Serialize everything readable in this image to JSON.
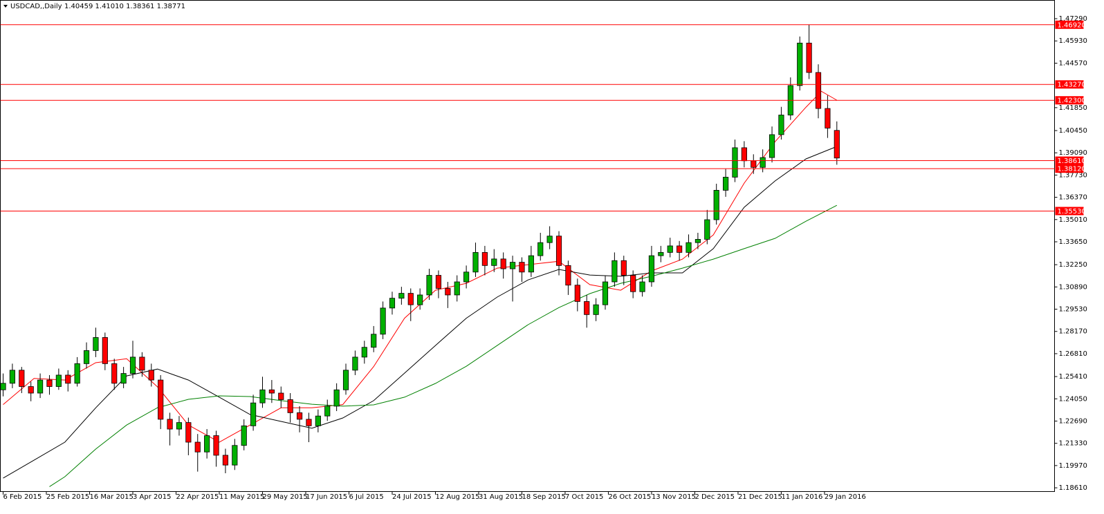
{
  "chart_data": {
    "type": "candlestick",
    "title": "USDCAD,,Daily",
    "subtitle": "1.40459 1.41010 1.38361 1.38771",
    "up_color": "#00b000",
    "down_color": "#ff0000",
    "wick_color": "#000000",
    "xlim": [
      -0.9,
      340.5
    ],
    "ylim": [
      1.1836,
      1.4839
    ],
    "x": [
      0,
      3,
      6,
      9,
      12,
      15,
      18,
      21,
      24,
      27,
      30,
      33,
      36,
      39,
      42,
      45,
      48,
      51,
      54,
      57,
      60,
      63,
      66,
      69,
      72,
      75,
      78,
      81,
      84,
      87,
      90,
      93,
      96,
      99,
      102,
      105,
      108,
      111,
      114,
      117,
      120,
      123,
      126,
      129,
      132,
      135,
      138,
      141,
      144,
      147,
      150,
      153,
      156,
      159,
      162,
      165,
      168,
      171,
      174,
      177,
      180,
      183,
      186,
      189,
      192,
      195,
      198,
      201,
      204,
      207,
      210,
      213,
      216,
      219,
      222,
      225,
      228,
      231,
      234,
      237,
      240,
      243,
      246,
      249,
      252,
      255,
      258,
      261,
      264,
      267,
      270
    ],
    "ohlc": [
      [
        1.246,
        1.256,
        1.242,
        1.25
      ],
      [
        1.25,
        1.262,
        1.247,
        1.258
      ],
      [
        1.258,
        1.26,
        1.244,
        1.248
      ],
      [
        1.248,
        1.251,
        1.239,
        1.244
      ],
      [
        1.244,
        1.256,
        1.241,
        1.252
      ],
      [
        1.252,
        1.255,
        1.243,
        1.248
      ],
      [
        1.248,
        1.259,
        1.246,
        1.255
      ],
      [
        1.255,
        1.258,
        1.245,
        1.25
      ],
      [
        1.25,
        1.266,
        1.248,
        1.262
      ],
      [
        1.262,
        1.275,
        1.259,
        1.27
      ],
      [
        1.27,
        1.284,
        1.266,
        1.278
      ],
      [
        1.278,
        1.281,
        1.258,
        1.262
      ],
      [
        1.262,
        1.265,
        1.246,
        1.25
      ],
      [
        1.25,
        1.26,
        1.247,
        1.256
      ],
      [
        1.256,
        1.276,
        1.253,
        1.266
      ],
      [
        1.266,
        1.269,
        1.254,
        1.258
      ],
      [
        1.258,
        1.262,
        1.248,
        1.252
      ],
      [
        1.252,
        1.255,
        1.222,
        1.228
      ],
      [
        1.228,
        1.232,
        1.212,
        1.222
      ],
      [
        1.222,
        1.23,
        1.218,
        1.226
      ],
      [
        1.226,
        1.229,
        1.206,
        1.214
      ],
      [
        1.214,
        1.219,
        1.196,
        1.208
      ],
      [
        1.208,
        1.222,
        1.204,
        1.218
      ],
      [
        1.218,
        1.221,
        1.199,
        1.206
      ],
      [
        1.206,
        1.21,
        1.195,
        1.2
      ],
      [
        1.2,
        1.216,
        1.197,
        1.212
      ],
      [
        1.212,
        1.228,
        1.209,
        1.224
      ],
      [
        1.224,
        1.243,
        1.221,
        1.238
      ],
      [
        1.238,
        1.254,
        1.235,
        1.246
      ],
      [
        1.246,
        1.252,
        1.238,
        1.244
      ],
      [
        1.244,
        1.248,
        1.235,
        1.24
      ],
      [
        1.24,
        1.244,
        1.226,
        1.232
      ],
      [
        1.232,
        1.236,
        1.22,
        1.228
      ],
      [
        1.228,
        1.232,
        1.214,
        1.224
      ],
      [
        1.224,
        1.234,
        1.22,
        1.23
      ],
      [
        1.23,
        1.24,
        1.227,
        1.236
      ],
      [
        1.236,
        1.25,
        1.233,
        1.246
      ],
      [
        1.246,
        1.262,
        1.243,
        1.258
      ],
      [
        1.258,
        1.27,
        1.255,
        1.266
      ],
      [
        1.266,
        1.276,
        1.262,
        1.272
      ],
      [
        1.272,
        1.285,
        1.269,
        1.28
      ],
      [
        1.28,
        1.3,
        1.277,
        1.296
      ],
      [
        1.296,
        1.306,
        1.292,
        1.302
      ],
      [
        1.302,
        1.309,
        1.298,
        1.305
      ],
      [
        1.305,
        1.308,
        1.288,
        1.298
      ],
      [
        1.298,
        1.308,
        1.295,
        1.304
      ],
      [
        1.304,
        1.32,
        1.301,
        1.316
      ],
      [
        1.316,
        1.319,
        1.302,
        1.308
      ],
      [
        1.308,
        1.312,
        1.296,
        1.304
      ],
      [
        1.304,
        1.316,
        1.3,
        1.312
      ],
      [
        1.312,
        1.322,
        1.308,
        1.318
      ],
      [
        1.318,
        1.336,
        1.315,
        1.33
      ],
      [
        1.33,
        1.334,
        1.316,
        1.322
      ],
      [
        1.322,
        1.332,
        1.318,
        1.326
      ],
      [
        1.326,
        1.33,
        1.314,
        1.32
      ],
      [
        1.32,
        1.328,
        1.3,
        1.324
      ],
      [
        1.324,
        1.327,
        1.312,
        1.318
      ],
      [
        1.318,
        1.334,
        1.315,
        1.328
      ],
      [
        1.328,
        1.342,
        1.325,
        1.336
      ],
      [
        1.336,
        1.346,
        1.332,
        1.34
      ],
      [
        1.34,
        1.343,
        1.316,
        1.322
      ],
      [
        1.322,
        1.325,
        1.304,
        1.31
      ],
      [
        1.31,
        1.314,
        1.294,
        1.3
      ],
      [
        1.3,
        1.304,
        1.284,
        1.292
      ],
      [
        1.292,
        1.302,
        1.288,
        1.298
      ],
      [
        1.298,
        1.316,
        1.295,
        1.312
      ],
      [
        1.312,
        1.33,
        1.309,
        1.325
      ],
      [
        1.325,
        1.328,
        1.31,
        1.316
      ],
      [
        1.316,
        1.319,
        1.302,
        1.306
      ],
      [
        1.306,
        1.316,
        1.303,
        1.312
      ],
      [
        1.312,
        1.334,
        1.309,
        1.328
      ],
      [
        1.328,
        1.334,
        1.324,
        1.33
      ],
      [
        1.33,
        1.339,
        1.327,
        1.334
      ],
      [
        1.334,
        1.337,
        1.325,
        1.33
      ],
      [
        1.33,
        1.341,
        1.327,
        1.336
      ],
      [
        1.336,
        1.342,
        1.332,
        1.338
      ],
      [
        1.338,
        1.356,
        1.335,
        1.35
      ],
      [
        1.35,
        1.372,
        1.347,
        1.368
      ],
      [
        1.368,
        1.381,
        1.364,
        1.376
      ],
      [
        1.376,
        1.399,
        1.373,
        1.394
      ],
      [
        1.394,
        1.398,
        1.382,
        1.386
      ],
      [
        1.386,
        1.39,
        1.378,
        1.382
      ],
      [
        1.382,
        1.393,
        1.379,
        1.388
      ],
      [
        1.388,
        1.407,
        1.385,
        1.402
      ],
      [
        1.402,
        1.419,
        1.399,
        1.414
      ],
      [
        1.414,
        1.437,
        1.411,
        1.432
      ],
      [
        1.432,
        1.462,
        1.429,
        1.458
      ],
      [
        1.458,
        1.4692,
        1.436,
        1.44
      ],
      [
        1.44,
        1.445,
        1.412,
        1.418
      ],
      [
        1.418,
        1.426,
        1.4,
        1.406
      ],
      [
        1.40459,
        1.4101,
        1.38361,
        1.38771
      ]
    ],
    "moving_averages": [
      {
        "color": "#ff0000",
        "x": [
          0,
          10,
          20,
          30,
          40,
          50,
          60,
          70,
          80,
          90,
          100,
          110,
          120,
          130,
          140,
          150,
          160,
          170,
          180,
          190,
          200,
          210,
          220,
          230,
          240,
          250,
          260,
          265,
          270
        ],
        "values": [
          1.237,
          1.253,
          1.252,
          1.2626,
          1.265,
          1.2478,
          1.2245,
          1.214,
          1.2245,
          1.235,
          1.235,
          1.237,
          1.2602,
          1.2898,
          1.3069,
          1.3111,
          1.3204,
          1.3225,
          1.3246,
          1.3103,
          1.3069,
          1.3187,
          1.3259,
          1.3407,
          1.3724,
          1.3977,
          1.4188,
          1.4285,
          1.4231
        ]
      },
      {
        "color": "#000000",
        "x": [
          0,
          10,
          20,
          30,
          40,
          50,
          60,
          70,
          80,
          90,
          100,
          110,
          120,
          130,
          140,
          150,
          160,
          170,
          180,
          190,
          200,
          210,
          220,
          230,
          240,
          250,
          260,
          270
        ],
        "values": [
          1.192,
          1.203,
          1.214,
          1.235,
          1.2545,
          1.2587,
          1.252,
          1.2415,
          1.2309,
          1.2267,
          1.2225,
          1.2288,
          1.2394,
          1.2562,
          1.2731,
          1.2898,
          1.3027,
          1.3132,
          1.3196,
          1.3162,
          1.3154,
          1.3175,
          1.3175,
          1.3323,
          1.3576,
          1.3737,
          1.3872,
          1.3948
        ]
      },
      {
        "color": "#008000",
        "x": [
          15,
          20,
          30,
          40,
          50,
          60,
          70,
          80,
          90,
          100,
          110,
          120,
          130,
          140,
          150,
          160,
          170,
          180,
          190,
          200,
          210,
          220,
          230,
          240,
          250,
          260,
          270
        ],
        "values": [
          1.1868,
          1.1929,
          1.2098,
          1.2245,
          1.2351,
          1.2402,
          1.2423,
          1.2419,
          1.2394,
          1.2372,
          1.236,
          1.2368,
          1.2415,
          1.2499,
          1.2604,
          1.2731,
          1.2858,
          1.2963,
          1.3048,
          1.3111,
          1.3154,
          1.3204,
          1.3259,
          1.3323,
          1.3386,
          1.3491,
          1.3588
        ]
      }
    ],
    "levels": {
      "color": "#ff0000",
      "values": [
        {
          "value": 1.4692,
          "label": "1.46920"
        },
        {
          "value": 1.4327,
          "label": "1.43270"
        },
        {
          "value": 1.423,
          "label": "1.42300"
        },
        {
          "value": 1.3861,
          "label": "1.38610"
        },
        {
          "value": 1.3812,
          "label": "1.38120"
        },
        {
          "value": 1.3553,
          "label": "1.35530"
        }
      ]
    },
    "yticks": [
      {
        "value": 1.4729,
        "label": "1.47290"
      },
      {
        "value": 1.4593,
        "label": "1.45930"
      },
      {
        "value": 1.4457,
        "label": "1.44570"
      },
      {
        "value": 1.4185,
        "label": "1.41850"
      },
      {
        "value": 1.4045,
        "label": "1.40450"
      },
      {
        "value": 1.3909,
        "label": "1.39090"
      },
      {
        "value": 1.3773,
        "label": "1.37730"
      },
      {
        "value": 1.3637,
        "label": "1.36370"
      },
      {
        "value": 1.3501,
        "label": "1.35010"
      },
      {
        "value": 1.3365,
        "label": "1.33650"
      },
      {
        "value": 1.3225,
        "label": "1.32250"
      },
      {
        "value": 1.3089,
        "label": "1.30890"
      },
      {
        "value": 1.2953,
        "label": "1.29530"
      },
      {
        "value": 1.2817,
        "label": "1.28170"
      },
      {
        "value": 1.2681,
        "label": "1.26810"
      },
      {
        "value": 1.2541,
        "label": "1.25410"
      },
      {
        "value": 1.2405,
        "label": "1.24050"
      },
      {
        "value": 1.2269,
        "label": "1.22690"
      },
      {
        "value": 1.2133,
        "label": "1.21330"
      },
      {
        "value": 1.1997,
        "label": "1.19970"
      },
      {
        "value": 1.1861,
        "label": "1.18610"
      }
    ],
    "xticks": [
      {
        "value": 0,
        "label": "6 Feb 2015"
      },
      {
        "value": 14,
        "label": "25 Feb 2015"
      },
      {
        "value": 28,
        "label": "16 Mar 2015"
      },
      {
        "value": 42,
        "label": "3 Apr 2015"
      },
      {
        "value": 56,
        "label": "22 Apr 2015"
      },
      {
        "value": 70,
        "label": "11 May 2015"
      },
      {
        "value": 84,
        "label": "29 May 2015"
      },
      {
        "value": 98,
        "label": "17 Jun 2015"
      },
      {
        "value": 112,
        "label": "6 Jul 2015"
      },
      {
        "value": 126,
        "label": "24 Jul 2015"
      },
      {
        "value": 140,
        "label": "12 Aug 2015"
      },
      {
        "value": 154,
        "label": "31 Aug 2015"
      },
      {
        "value": 168,
        "label": "18 Sep 2015"
      },
      {
        "value": 182,
        "label": "7 Oct 2015"
      },
      {
        "value": 196,
        "label": "26 Oct 2015"
      },
      {
        "value": 210,
        "label": "13 Nov 2015"
      },
      {
        "value": 224,
        "label": "2 Dec 2015"
      },
      {
        "value": 238,
        "label": "21 Dec 2015"
      },
      {
        "value": 252,
        "label": "11 Jan 2016"
      },
      {
        "value": 266,
        "label": "29 Jan 2016"
      }
    ]
  }
}
